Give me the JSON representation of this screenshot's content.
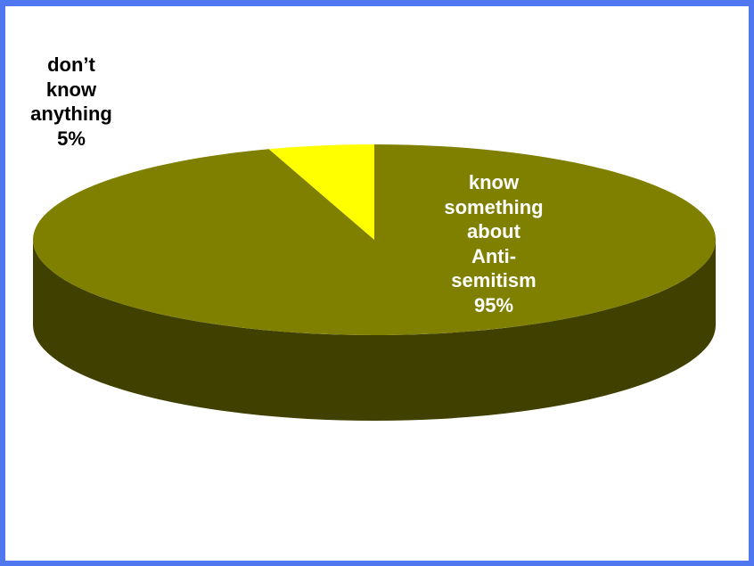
{
  "chart_data": {
    "type": "pie",
    "style": "3d",
    "slices": [
      {
        "label_lines": [
          "know",
          "something",
          "about",
          "Anti-",
          "semitism"
        ],
        "percent_text": "95%",
        "value": 95,
        "top_color": "#808000",
        "side_color": "#404000"
      },
      {
        "label_lines": [
          "don’t",
          "know",
          "anything"
        ],
        "percent_text": "5%",
        "value": 5,
        "top_color": "#ffff00",
        "side_color": "#808000"
      }
    ],
    "legend": "none"
  },
  "colors": {
    "frame_border": "#4f78f0",
    "background": "#ffffff",
    "label_dark": "#000000",
    "label_light": "#ffffff"
  }
}
